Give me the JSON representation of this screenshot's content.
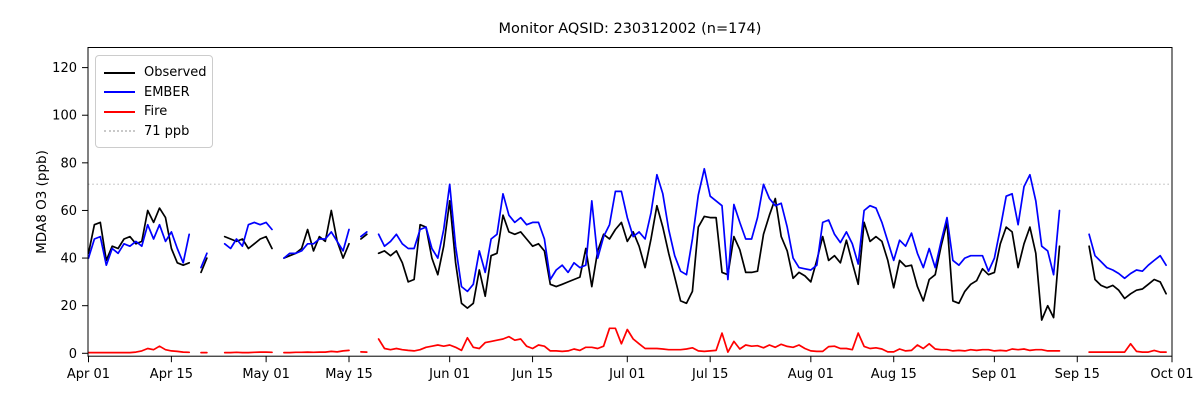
{
  "header": {
    "title": "Monitor AQSID: 230312002 (n=174)"
  },
  "legend": {
    "items": [
      {
        "label": "Observed",
        "color": "#000000",
        "style": "solid"
      },
      {
        "label": "EMBER",
        "color": "#0000ff",
        "style": "solid"
      },
      {
        "label": "Fire",
        "color": "#ff0000",
        "style": "solid"
      },
      {
        "label": "71 ppb",
        "color": "#c9c9c9",
        "style": "dotted"
      }
    ]
  },
  "chart_data": {
    "type": "line",
    "title": "Monitor AQSID: 230312002 (n=174)",
    "xlabel": "",
    "ylabel": "MDA8 O3 (ppb)",
    "ylim": [
      0,
      120
    ],
    "yticks": [
      0,
      20,
      40,
      60,
      80,
      100,
      120
    ],
    "grid": false,
    "legend_position": "upper left",
    "threshold": {
      "value": 71,
      "label": "71 ppb",
      "color": "#c9c9c9",
      "style": "dotted"
    },
    "x_axis": {
      "unit": "days since Apr 01",
      "n_days": 183,
      "ticks": [
        {
          "day": 0,
          "label": "Apr 01"
        },
        {
          "day": 14,
          "label": "Apr 15"
        },
        {
          "day": 30,
          "label": "May 01"
        },
        {
          "day": 44,
          "label": "May 15"
        },
        {
          "day": 61,
          "label": "Jun 01"
        },
        {
          "day": 75,
          "label": "Jun 15"
        },
        {
          "day": 91,
          "label": "Jul 01"
        },
        {
          "day": 105,
          "label": "Jul 15"
        },
        {
          "day": 122,
          "label": "Aug 01"
        },
        {
          "day": 136,
          "label": "Aug 15"
        },
        {
          "day": 153,
          "label": "Sep 01"
        },
        {
          "day": 167,
          "label": "Sep 15"
        },
        {
          "day": 183,
          "label": "Oct 01"
        }
      ]
    },
    "series": [
      {
        "name": "Observed",
        "color": "#000000",
        "style": "solid",
        "values": [
          42,
          54,
          55,
          39,
          45,
          44,
          48,
          49,
          46,
          47,
          60,
          55,
          61,
          57,
          44,
          38,
          37,
          38,
          null,
          34,
          40,
          null,
          null,
          49,
          48,
          47,
          48,
          44,
          46,
          48,
          49,
          44,
          null,
          40,
          41,
          42,
          44,
          52,
          43,
          49,
          47,
          60,
          47,
          40,
          46,
          null,
          48,
          50,
          null,
          42,
          43,
          41,
          43,
          38,
          30,
          31,
          54,
          53,
          40,
          33,
          45,
          64,
          38,
          21,
          19,
          21,
          35,
          24,
          41,
          42,
          58,
          51,
          50,
          51,
          48,
          45,
          46,
          43,
          29,
          28,
          29,
          30,
          31,
          32,
          44,
          28,
          43,
          50,
          48,
          52,
          55,
          47,
          51,
          45,
          36,
          48,
          62,
          53,
          42,
          32,
          22,
          21,
          26,
          53,
          57.5,
          57,
          57,
          34,
          33,
          49,
          43.5,
          34,
          34,
          34.5,
          50,
          58,
          65,
          49,
          43,
          31.5,
          34,
          32.5,
          30,
          39,
          49,
          39,
          41,
          38,
          47.5,
          38,
          29,
          55,
          47,
          49,
          47,
          39,
          27.5,
          39,
          36.5,
          37,
          28,
          22,
          31,
          33,
          45,
          55,
          22,
          21,
          26,
          29,
          30.5,
          35.5,
          33,
          34,
          46,
          53,
          51,
          36,
          46,
          53,
          42,
          14,
          20,
          15,
          45,
          null,
          null,
          null,
          null,
          45,
          31,
          28.5,
          27.5,
          28.5,
          26.5,
          23,
          25,
          26.5,
          27,
          29,
          31,
          30,
          25
        ]
      },
      {
        "name": "EMBER",
        "color": "#0000ff",
        "style": "solid",
        "values": [
          40,
          48,
          49,
          37,
          44,
          42,
          46,
          45,
          47,
          45,
          54,
          48,
          54,
          47,
          51,
          44,
          38,
          50,
          null,
          36,
          42,
          null,
          null,
          46,
          44,
          48,
          45,
          54,
          55,
          54,
          55,
          52,
          null,
          40,
          42,
          42,
          43,
          46,
          46,
          48,
          48,
          51,
          47,
          43,
          52,
          null,
          49,
          51,
          null,
          50,
          45,
          47,
          50,
          46,
          44,
          44,
          52,
          53,
          44,
          40,
          52,
          71,
          45,
          28,
          26,
          29,
          43,
          34,
          48,
          50,
          67,
          58,
          55,
          57,
          54,
          55,
          55,
          48,
          31,
          35,
          37,
          34,
          38,
          36,
          37,
          64,
          40,
          49,
          54,
          68,
          68,
          57,
          49,
          51,
          48,
          59,
          75,
          67,
          52,
          41,
          34.5,
          33,
          48,
          66.5,
          77.5,
          66,
          64,
          62,
          31,
          62.5,
          55,
          48,
          48,
          57,
          71,
          65,
          62,
          63,
          53,
          40,
          36,
          35.5,
          35,
          37,
          55,
          56,
          50,
          46.5,
          51,
          46,
          37.5,
          60,
          62,
          61,
          55,
          47,
          39,
          47.5,
          45,
          50.5,
          42,
          36,
          44,
          36,
          47,
          57,
          39,
          37,
          40,
          41,
          41,
          41,
          34.5,
          40,
          52.5,
          66,
          67,
          54,
          70,
          75,
          64,
          45,
          43,
          33,
          60,
          null,
          null,
          null,
          null,
          50,
          41,
          38.5,
          36,
          35,
          33.5,
          31.5,
          33.5,
          35,
          34.5,
          37,
          39,
          41,
          37
        ]
      },
      {
        "name": "Fire",
        "color": "#ff0000",
        "style": "solid",
        "values": [
          0.3,
          0.3,
          0.3,
          0.3,
          0.3,
          0.3,
          0.3,
          0.3,
          0.5,
          1,
          2,
          1.5,
          3,
          1.5,
          1,
          0.8,
          0.5,
          0.4,
          null,
          0.3,
          0.3,
          null,
          null,
          0.3,
          0.3,
          0.4,
          0.3,
          0.3,
          0.4,
          0.5,
          0.5,
          0.4,
          null,
          0.3,
          0.3,
          0.4,
          0.4,
          0.5,
          0.4,
          0.5,
          0.5,
          0.8,
          0.6,
          1,
          1.2,
          null,
          0.6,
          0.5,
          null,
          6,
          2,
          1.5,
          2,
          1.5,
          1.2,
          1,
          1.5,
          2.5,
          3,
          3.5,
          3,
          3.5,
          2.5,
          1.2,
          6.5,
          2.5,
          2,
          4.5,
          5,
          5.5,
          6,
          7,
          5.5,
          6,
          3,
          2,
          3.5,
          3,
          1,
          1,
          0.8,
          1,
          1.8,
          1.2,
          2.5,
          2.5,
          2,
          3,
          10.5,
          10.5,
          4,
          10,
          6,
          4,
          2,
          2,
          2,
          1.8,
          1.5,
          1.5,
          1.5,
          1.8,
          2.3,
          1,
          0.8,
          1,
          1.2,
          8.5,
          0.5,
          5,
          1.8,
          3.5,
          3,
          3.2,
          2.3,
          3.5,
          2.5,
          3.8,
          2.9,
          2.5,
          3.5,
          2,
          1,
          0.8,
          0.8,
          2.8,
          3,
          2,
          2,
          1.5,
          8.5,
          2.9,
          2,
          2.3,
          1.8,
          0.6,
          0.6,
          1.8,
          1,
          1.2,
          3.5,
          2,
          4,
          1.8,
          1.5,
          1.5,
          1,
          1.2,
          1,
          1.5,
          1.2,
          1.5,
          1.5,
          1,
          1.2,
          1,
          1.8,
          1.5,
          1.8,
          1.2,
          1.5,
          1.5,
          1,
          1,
          1,
          null,
          null,
          null,
          null,
          0.5,
          0.5,
          0.5,
          0.5,
          0.5,
          0.5,
          0.5,
          4,
          0.8,
          0.5,
          0.5,
          1.2,
          0.5,
          0.5
        ]
      }
    ]
  }
}
